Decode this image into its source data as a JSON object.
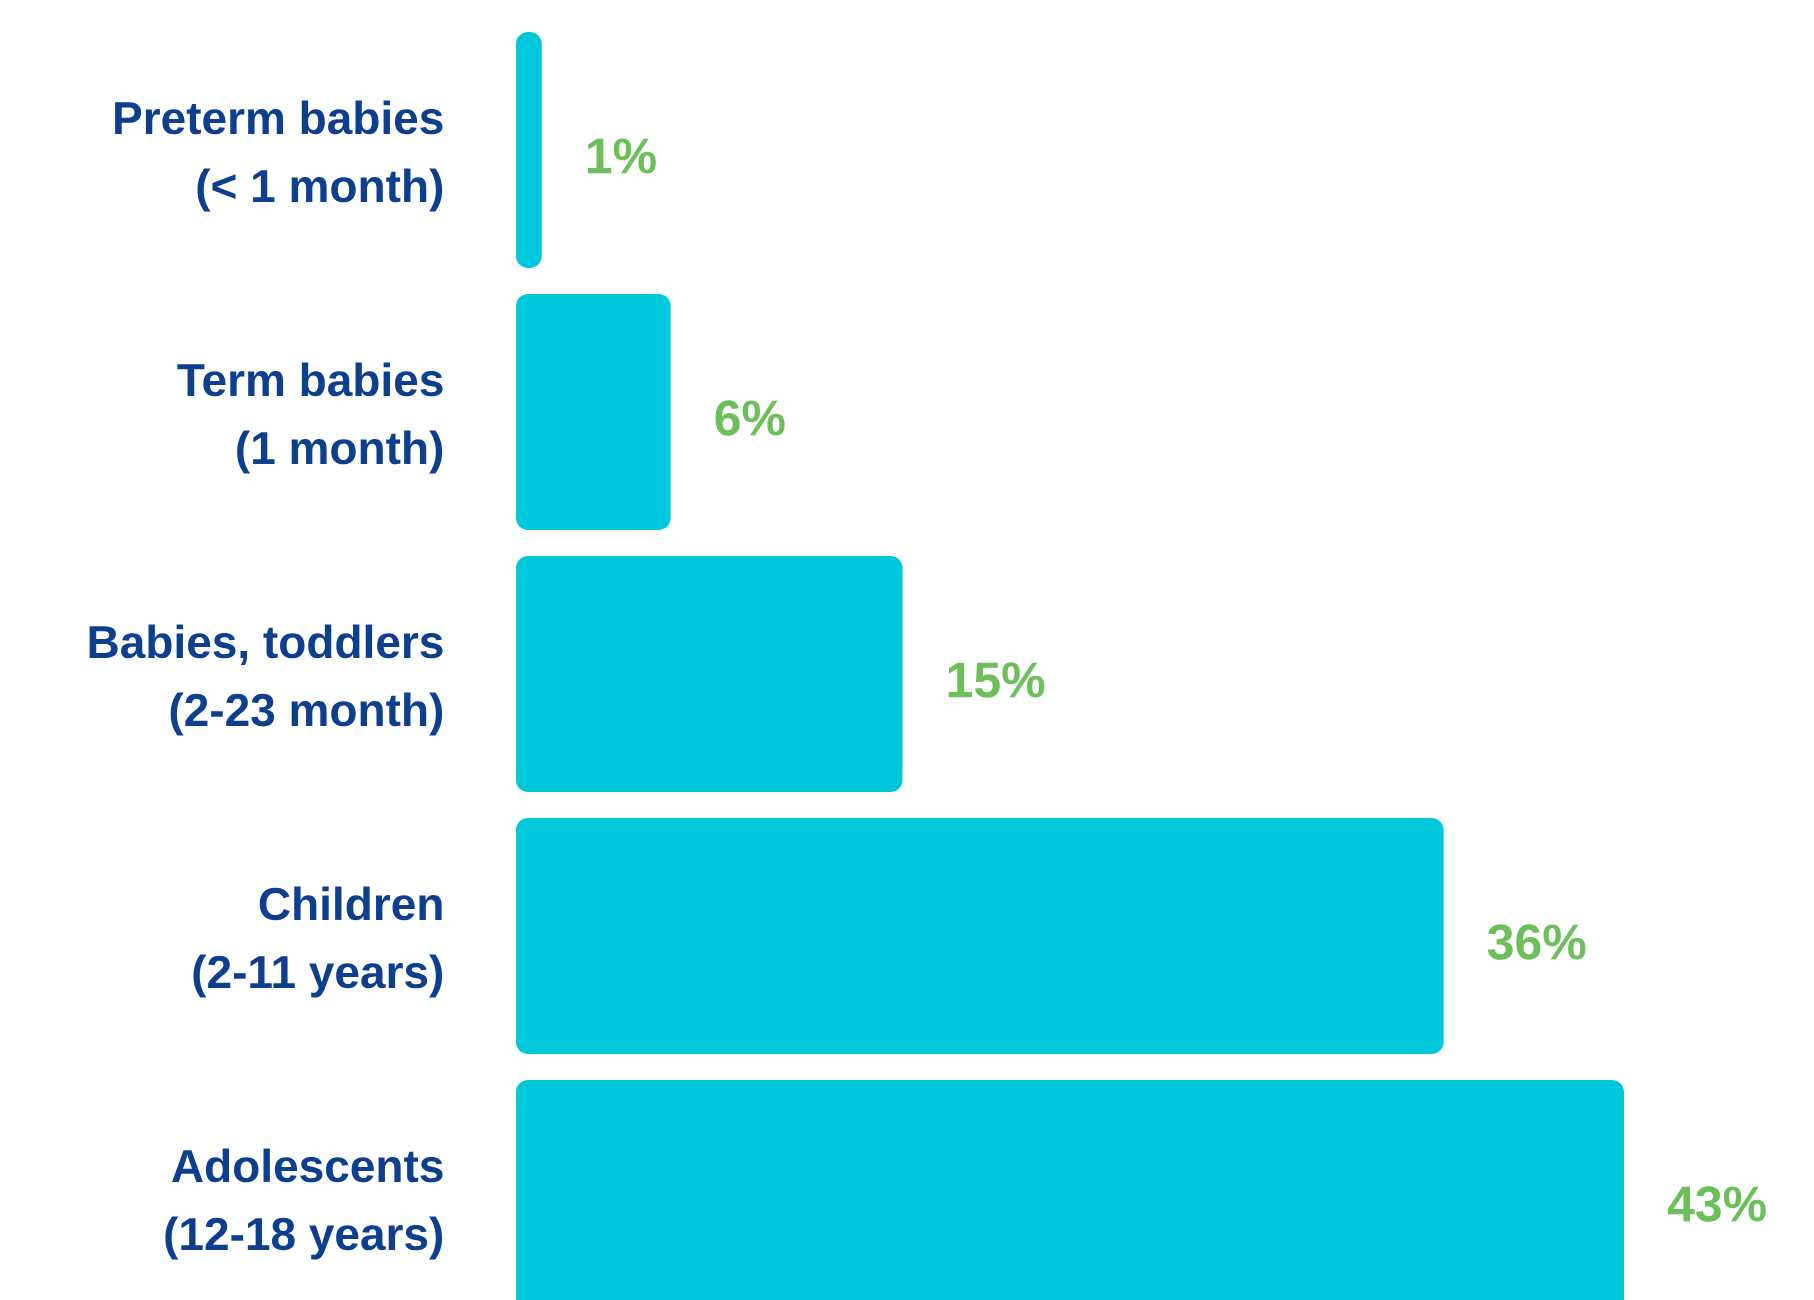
{
  "chart_data": {
    "type": "bar",
    "orientation": "horizontal",
    "categories": [
      "Preterm babies\n(< 1 month)",
      "Term babies\n(1 month)",
      "Babies, toddlers\n(2-23 month)",
      "Children\n(2-11 years)",
      "Adolescents\n(12-18 years)"
    ],
    "values": [
      1,
      6,
      15,
      36,
      43
    ],
    "value_labels": [
      "1%",
      "6%",
      "15%",
      "36%",
      "43%"
    ],
    "color": "#00c8dc"
  }
}
